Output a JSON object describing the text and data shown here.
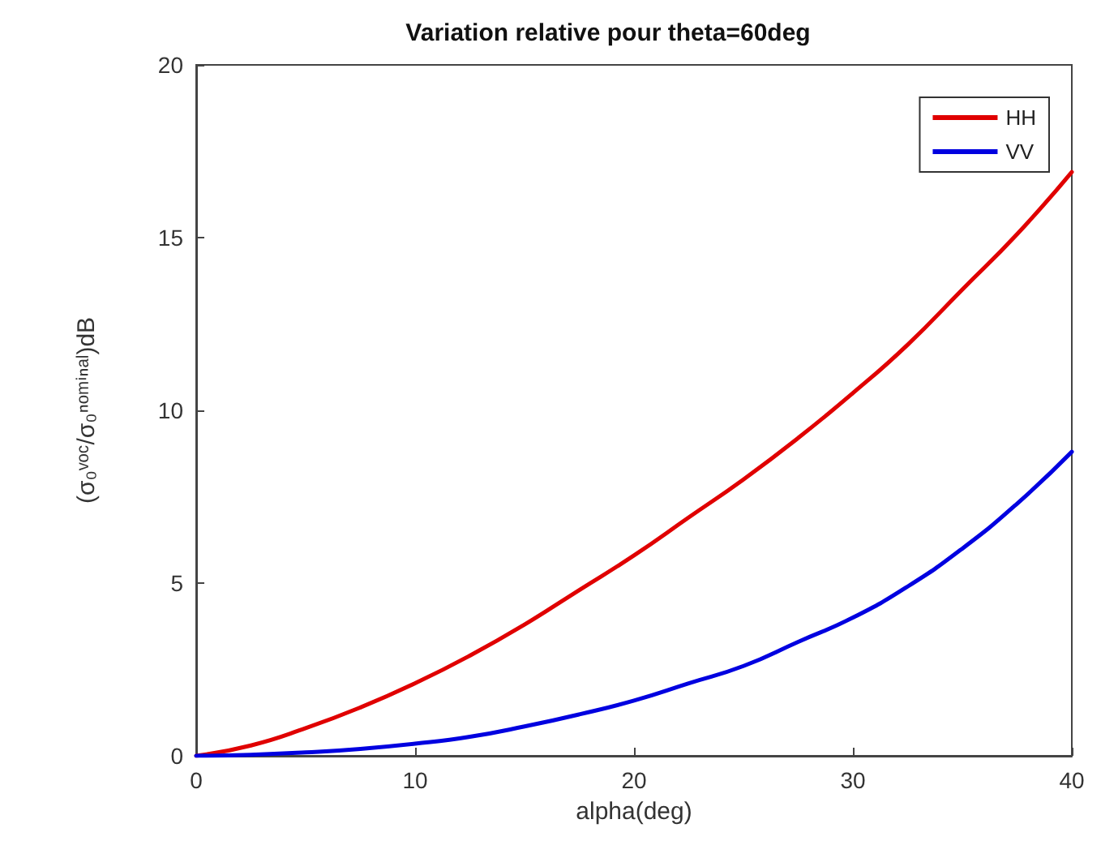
{
  "chart_data": {
    "type": "line",
    "title": "Variation relative pour theta=60deg",
    "xlabel": "alpha(deg)",
    "ylabel": "(σ₀ᵛᵒᶜ/σ₀ⁿᵒᵐⁱⁿᵃˡ)dB",
    "x": [
      0,
      2.5,
      5,
      7.5,
      10,
      12.5,
      15,
      17.5,
      20,
      22.5,
      25,
      27.5,
      30,
      32.5,
      35,
      37.5,
      40
    ],
    "series": [
      {
        "name": "HH",
        "color": "#e00000",
        "values": [
          0,
          0.3,
          0.8,
          1.4,
          2.1,
          2.9,
          3.8,
          4.8,
          5.8,
          6.9,
          8.0,
          9.2,
          10.5,
          11.9,
          13.5,
          15.1,
          16.9
        ]
      },
      {
        "name": "VV",
        "color": "#0000e0",
        "values": [
          0,
          0.03,
          0.1,
          0.2,
          0.35,
          0.55,
          0.85,
          1.2,
          1.6,
          2.1,
          2.6,
          3.3,
          4.0,
          4.9,
          6.0,
          7.3,
          8.8
        ]
      }
    ],
    "xlim": [
      0,
      40
    ],
    "xticks": [
      0,
      10,
      20,
      30,
      40
    ],
    "ylim": [
      0,
      20
    ],
    "yticks": [
      0,
      5,
      10,
      15,
      20
    ],
    "grid": false,
    "legend": "top right",
    "marker": "none",
    "line_style": "solid"
  }
}
